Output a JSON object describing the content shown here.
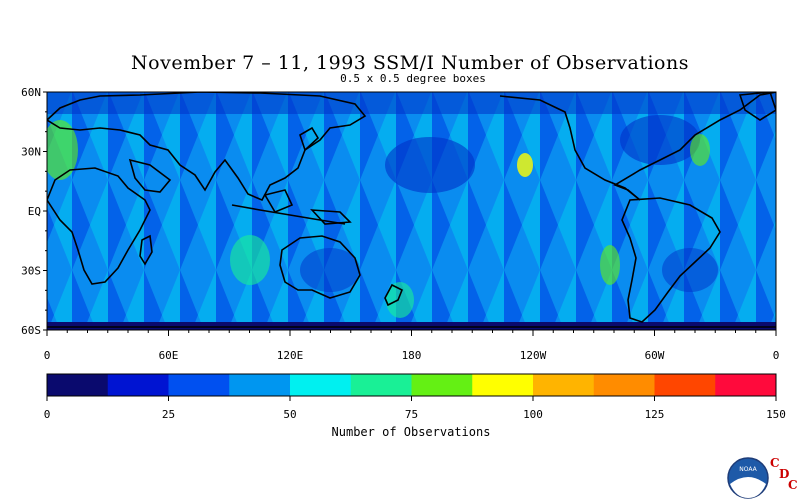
{
  "title": "November 7 – 11, 1993 SSM/I Number of Observations",
  "subtitle": "0.5 x 0.5 degree boxes",
  "map": {
    "lat_labels": [
      "60N",
      "30N",
      "EQ",
      "30S",
      "60S"
    ],
    "lon_labels": [
      "0",
      "60E",
      "120E",
      "180",
      "120W",
      "60W",
      "0"
    ],
    "lon_range": [
      0,
      360
    ],
    "lat_range": [
      -60,
      60
    ],
    "land_outline_color": "#000000"
  },
  "colorbar": {
    "label": "Number of Observations",
    "tick_labels": [
      "0",
      "25",
      "50",
      "75",
      "100",
      "125",
      "150"
    ],
    "range": [
      0,
      150
    ],
    "bins": 12,
    "colors": [
      "#0a0a6e",
      "#0014d2",
      "#0050f0",
      "#0096f0",
      "#00f0f0",
      "#19f096",
      "#64f014",
      "#ffff00",
      "#ffb400",
      "#ff8c00",
      "#ff4600",
      "#ff0a3c"
    ]
  },
  "logo": {
    "noaa_text": "NOAA",
    "cdc_letters": [
      "C",
      "D",
      "C"
    ]
  }
}
